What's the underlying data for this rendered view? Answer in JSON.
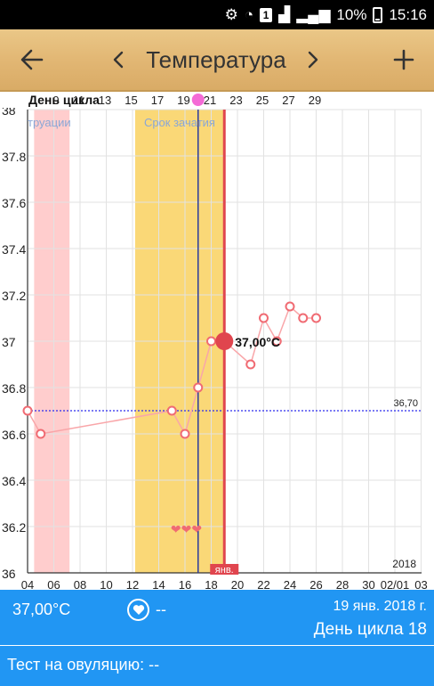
{
  "status_bar": {
    "sim_label": "1",
    "battery": "10%",
    "time": "15:16"
  },
  "toolbar": {
    "back_icon": "arrow-left-icon",
    "prev_icon": "chevron-left-icon",
    "next_icon": "chevron-right-icon",
    "add_icon": "plus-icon",
    "title": "Температура"
  },
  "chart_data": {
    "type": "line",
    "title": "",
    "cycle_label": "День цикла",
    "cycle_ticks": [
      "9",
      "11",
      "13",
      "15",
      "17",
      "19",
      "21",
      "23",
      "25",
      "27",
      "29"
    ],
    "y_ticks": [
      "36",
      "36.2",
      "36.4",
      "36.6",
      "36.8",
      "37",
      "37.2",
      "37.4",
      "37.6",
      "37.8",
      "38"
    ],
    "ylim": [
      36,
      38
    ],
    "x_ticks": [
      "04",
      "06",
      "08",
      "10",
      "12",
      "14",
      "16",
      "18",
      "20",
      "22",
      "24",
      "26",
      "28",
      "30",
      "02/01",
      "03"
    ],
    "year_label": "2018",
    "month_label": "янв.",
    "menstruation_label": "труации",
    "fertile_label": "Срок зачатия",
    "coverline_label": "36,70",
    "coverline_value": 36.7,
    "selected_label": "37,00°C",
    "selected_value": 37.0,
    "selected_date_index": 19,
    "ovulation_date_index": 17,
    "menstruation_range": [
      4.5,
      7.2
    ],
    "fertile_range": [
      12.2,
      19
    ],
    "hearts": "❤❤❤",
    "series": [
      {
        "values": [
          {
            "x": 4,
            "y": 36.7
          },
          {
            "x": 5,
            "y": 36.6
          },
          {
            "x": 15,
            "y": 36.7
          },
          {
            "x": 16,
            "y": 36.6
          },
          {
            "x": 17,
            "y": 36.8
          },
          {
            "x": 18,
            "y": 37.0
          },
          {
            "x": 19,
            "y": 37.0
          },
          {
            "x": 21,
            "y": 36.9
          },
          {
            "x": 22,
            "y": 37.1
          },
          {
            "x": 23,
            "y": 37.0
          },
          {
            "x": 24,
            "y": 37.15
          },
          {
            "x": 25,
            "y": 37.1
          },
          {
            "x": 26,
            "y": 37.1
          }
        ]
      }
    ],
    "colors": {
      "menstruation": "#ffcdcd",
      "fertile": "#fad877",
      "ovulation_line": "#2a3a9c",
      "selected_line": "#e0454e",
      "series_line": "#f9a6a9",
      "point_stroke": "#f06b73",
      "coverline": "#2a2aee",
      "hearts": "#f06b73"
    }
  },
  "info": {
    "temperature": "37,00°C",
    "heart_icon": "heart-icon",
    "heart_value": "--",
    "date": "19 янв. 2018 г.",
    "cycle_day": "День цикла 18"
  },
  "ovulation_test": {
    "label": "Тест на овуляцию: --"
  }
}
